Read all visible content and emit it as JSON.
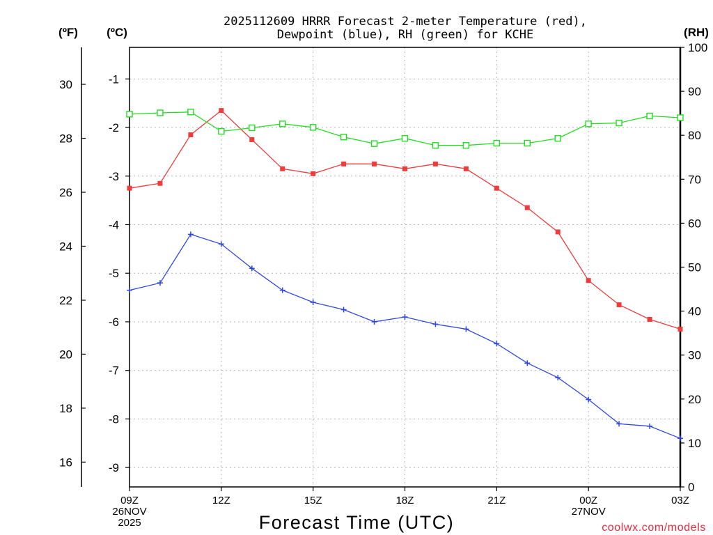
{
  "chart_data": {
    "type": "line",
    "title": [
      "2025112609 HRRR Forecast 2-meter Temperature (red),",
      "Dewpoint (blue), RH (green) for KCHE"
    ],
    "xlabel": "Forecast Time (UTC)",
    "credit": "coolwx.com/models",
    "unit_labels": {
      "fahrenheit": "(ºF)",
      "celsius": "(ºC)",
      "rh": "(RH)"
    },
    "x_range": [
      0,
      18
    ],
    "x_ticks": [
      {
        "x": 0,
        "lines": [
          "09Z",
          "26NOV",
          "2025"
        ]
      },
      {
        "x": 3,
        "lines": [
          "12Z"
        ]
      },
      {
        "x": 6,
        "lines": [
          "15Z"
        ]
      },
      {
        "x": 9,
        "lines": [
          "18Z"
        ]
      },
      {
        "x": 12,
        "lines": [
          "21Z"
        ]
      },
      {
        "x": 15,
        "lines": [
          "00Z",
          "27NOV"
        ]
      },
      {
        "x": 18,
        "lines": [
          "03Z"
        ]
      }
    ],
    "celsius_axis": {
      "range": [
        -9.4,
        -0.35
      ],
      "ticks": [
        "-1",
        "-2",
        "-3",
        "-4",
        "-5",
        "-6",
        "-7",
        "-8",
        "-9"
      ]
    },
    "fahrenheit_axis": {
      "range": [
        15.08,
        31.37
      ],
      "ticks": [
        "16",
        "18",
        "20",
        "22",
        "24",
        "26",
        "28",
        "30"
      ]
    },
    "rh_axis": {
      "range": [
        0,
        100
      ],
      "ticks": [
        "0",
        "10",
        "20",
        "30",
        "40",
        "50",
        "60",
        "70",
        "80",
        "90",
        "100"
      ]
    },
    "series": [
      {
        "name": "Temperature",
        "unit": "C",
        "axis": "celsius",
        "color": "#f03b3b",
        "marker": "filled-square",
        "x": [
          0,
          1,
          2,
          3,
          4,
          5,
          6,
          7,
          8,
          9,
          10,
          11,
          12,
          13,
          14,
          15,
          16,
          17,
          18
        ],
        "values": [
          -3.25,
          -3.15,
          -2.15,
          -1.65,
          -2.25,
          -2.85,
          -2.95,
          -2.75,
          -2.75,
          -2.85,
          -2.75,
          -2.85,
          -3.25,
          -3.65,
          -4.15,
          -5.15,
          -5.65,
          -5.95,
          -6.15
        ]
      },
      {
        "name": "Dewpoint",
        "unit": "C",
        "axis": "celsius",
        "color": "#2e46e8",
        "marker": "plus",
        "x": [
          0,
          1,
          2,
          3,
          4,
          5,
          6,
          7,
          8,
          9,
          10,
          11,
          12,
          13,
          14,
          15,
          16,
          17,
          18
        ],
        "values": [
          -5.35,
          -5.2,
          -4.2,
          -4.4,
          -4.9,
          -5.35,
          -5.6,
          -5.75,
          -6.0,
          -5.9,
          -6.05,
          -6.15,
          -6.45,
          -6.85,
          -7.15,
          -7.6,
          -8.1,
          -8.15,
          -8.4
        ]
      },
      {
        "name": "RH",
        "unit": "%",
        "axis": "rh",
        "color": "#22dd22",
        "marker": "open-square",
        "x": [
          0,
          1,
          2,
          3,
          4,
          5,
          6,
          7,
          8,
          9,
          10,
          11,
          12,
          13,
          14,
          15,
          16,
          17,
          18
        ],
        "values": [
          84.8,
          85.1,
          85.3,
          80.9,
          81.7,
          82.6,
          81.8,
          79.6,
          78.1,
          79.3,
          77.7,
          77.7,
          78.2,
          78.2,
          79.3,
          82.6,
          82.8,
          84.4,
          84.0
        ]
      }
    ]
  }
}
